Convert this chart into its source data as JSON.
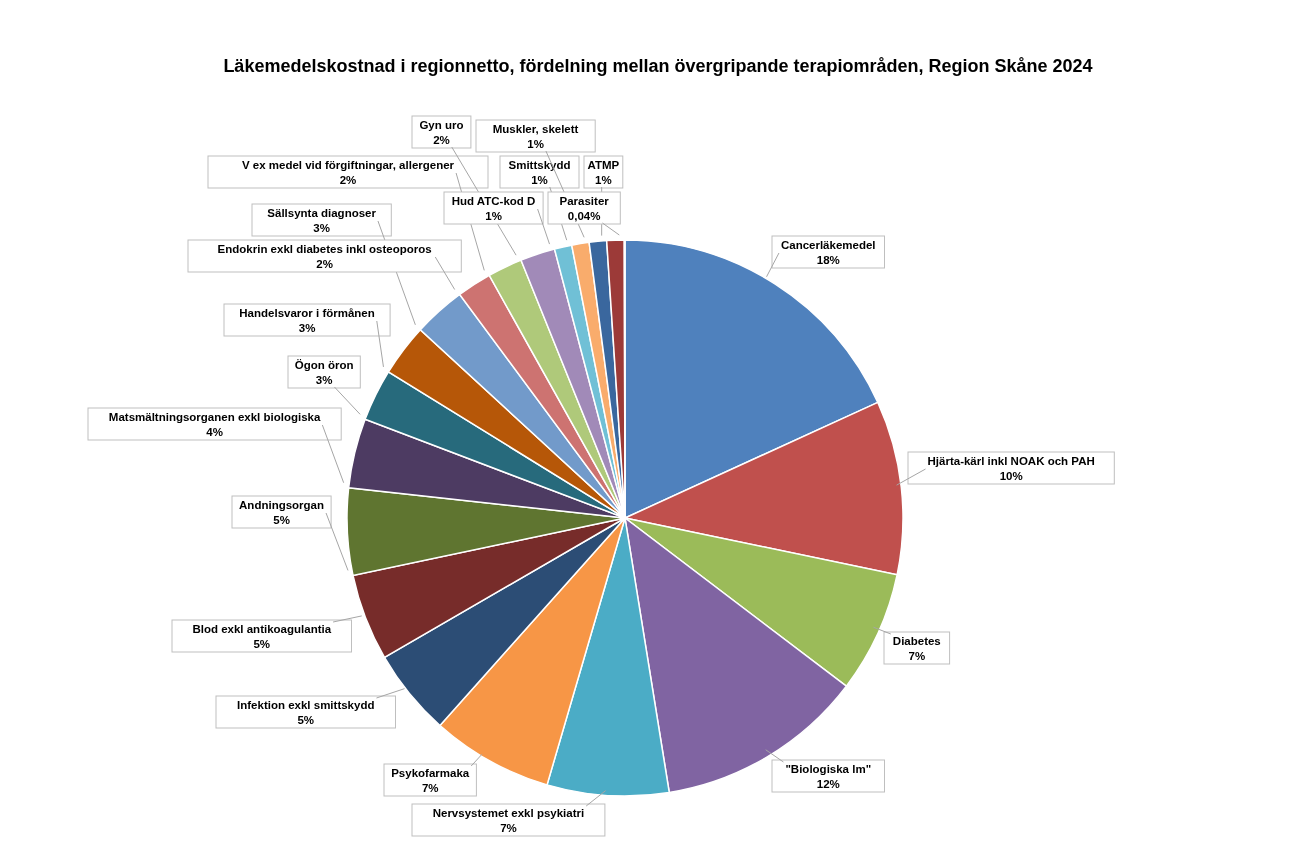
{
  "chart_data": {
    "type": "pie",
    "title": "Läkemedelskostnad i regionnetto, fördelning mellan övergripande terapiområden, Region Skåne 2024",
    "categories": [
      "Cancerläkemedel",
      "Hjärta-kärl inkl NOAK och PAH",
      "Diabetes",
      "\"Biologiska lm\"",
      "Nervsystemet exkl psykiatri",
      "Psykofarmaka",
      "Infektion exkl smittskydd",
      "Blod exkl antikoagulantia",
      "Andningsorgan",
      "Matsmältningsorganen exkl biologiska",
      "Ögon öron",
      "Handelsvaror i förmånen",
      "Sällsynta diagnoser",
      "Endokrin  exkl diabetes inkl osteoporos",
      "V ex medel vid förgiftningar, allergener",
      "Gyn uro",
      "Hud ATC-kod D",
      "Smittskydd",
      "Muskler, skelett",
      "ATMP",
      "Parasiter"
    ],
    "values": [
      18,
      10,
      7,
      12,
      7,
      7,
      5,
      5,
      5,
      4,
      3,
      3,
      3,
      2,
      2,
      2,
      1,
      1,
      1,
      1,
      0.04
    ],
    "value_labels": [
      "18%",
      "10%",
      "7%",
      "12%",
      "7%",
      "7%",
      "5%",
      "5%",
      "5%",
      "4%",
      "3%",
      "3%",
      "3%",
      "2%",
      "2%",
      "2%",
      "1%",
      "1%",
      "1%",
      "1%",
      "0,04%"
    ],
    "colors": [
      "#4f81bd",
      "#c0504d",
      "#9bbb59",
      "#8064a2",
      "#4bacc6",
      "#f79646",
      "#2c4d75",
      "#772c2a",
      "#5f7530",
      "#4d3b62",
      "#276a7c",
      "#b65708",
      "#729aca",
      "#cd7371",
      "#afc97a",
      "#a18ab8",
      "#70c0d6",
      "#f9ac6c",
      "#3a679e",
      "#9c3a38",
      "#7a9dd0"
    ]
  }
}
